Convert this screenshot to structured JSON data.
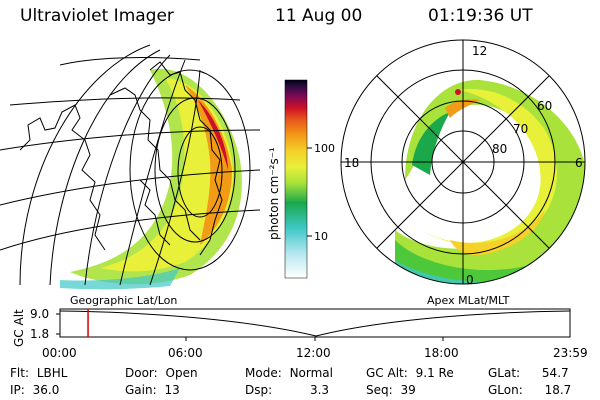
{
  "header": {
    "instrument": "Ultraviolet Imager",
    "date": "11 Aug 00",
    "time": "01:19:36 UT"
  },
  "panels": {
    "left_label": "Geographic Lat/Lon",
    "right_label": "Apex MLat/MLT"
  },
  "colorbar": {
    "unit_label": "photon cm⁻²s⁻¹",
    "ticks": [
      "100",
      "10"
    ],
    "colors": [
      "#f2f4ff",
      "#b8e8f0",
      "#3ec8c8",
      "#1aa84b",
      "#4cc83a",
      "#a8e23a",
      "#e8f03a",
      "#f5d12a",
      "#f29b17",
      "#e8561c",
      "#cc1028",
      "#7a0a55",
      "#2a0a40",
      "#000018"
    ]
  },
  "polar_labels": {
    "mlt": [
      "12",
      "18",
      "6",
      "0"
    ],
    "lat": [
      "60",
      "70",
      "80"
    ]
  },
  "timeline": {
    "ylabel": "GC Alt",
    "y_ticks": [
      "9.0",
      "1.8"
    ],
    "x_ticks": [
      "00:00",
      "06:00",
      "12:00",
      "18:00",
      "23:59"
    ],
    "current_fraction": 0.055
  },
  "info": {
    "row1": [
      {
        "label": "Flt:",
        "value": "LBHL"
      },
      {
        "label": "Door:",
        "value": "Open"
      },
      {
        "label": "Mode:",
        "value": "Normal"
      },
      {
        "label": "GC Alt:",
        "value": "9.1 Re"
      },
      {
        "label": "GLat:",
        "value": "54.7"
      }
    ],
    "row2": [
      {
        "label": "IP:",
        "value": "36.0"
      },
      {
        "label": "Gain:",
        "value": "13"
      },
      {
        "label": "Dsp:",
        "value": "3.3"
      },
      {
        "label": "Seq:",
        "value": "39"
      },
      {
        "label": "GLon:",
        "value": "18.7"
      }
    ]
  },
  "colors": {
    "background": "#ffffff",
    "lines": "#000000",
    "marker": "#dd0000"
  }
}
